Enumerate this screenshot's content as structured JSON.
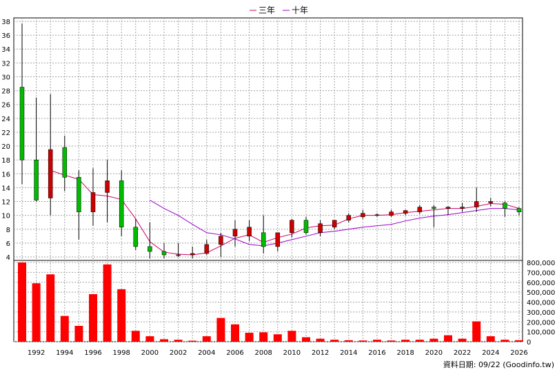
{
  "legend": [
    {
      "label": "三年",
      "color": "#cc0066"
    },
    {
      "label": "十年",
      "color": "#9900cc"
    }
  ],
  "footer": "資料日期: 09/22  (Goodinfo.tw)",
  "colors": {
    "up": "#cc0000",
    "down": "#00bb00",
    "volume": "#ff0000",
    "grid": "#a0a0a0",
    "wick": "#000000"
  },
  "chart_data": [
    {
      "type": "candlestick",
      "title": "",
      "ylim": [
        4,
        38
      ],
      "y_ticks": [
        4,
        6,
        8,
        10,
        12,
        14,
        16,
        18,
        20,
        22,
        24,
        26,
        28,
        30,
        32,
        34,
        36,
        38
      ],
      "x_tick_labels": [
        "1992",
        "1994",
        "1996",
        "1998",
        "2000",
        "2002",
        "2004",
        "2006",
        "2008",
        "2010",
        "2012",
        "2014",
        "2016",
        "2018",
        "2020",
        "2022",
        "2024",
        "2026"
      ],
      "years": [
        1991,
        1992,
        1993,
        1994,
        1995,
        1996,
        1997,
        1998,
        1999,
        2000,
        2001,
        2002,
        2003,
        2004,
        2005,
        2006,
        2007,
        2008,
        2009,
        2010,
        2011,
        2012,
        2013,
        2014,
        2015,
        2016,
        2017,
        2018,
        2019,
        2020,
        2021,
        2022,
        2023,
        2024,
        2025,
        2026
      ],
      "ohlc": [
        [
          28.5,
          37.7,
          14.5,
          18.0
        ],
        [
          18.0,
          27.0,
          12.0,
          12.2
        ],
        [
          12.5,
          27.5,
          10.0,
          19.5
        ],
        [
          19.8,
          21.5,
          13.5,
          15.5
        ],
        [
          15.5,
          16.5,
          6.5,
          10.5
        ],
        [
          10.5,
          16.8,
          8.5,
          13.3
        ],
        [
          13.3,
          18.0,
          9.0,
          15.0
        ],
        [
          15.0,
          16.5,
          7.0,
          8.3
        ],
        [
          8.3,
          9.5,
          5.0,
          5.5
        ],
        [
          5.5,
          9.0,
          3.8,
          4.8
        ],
        [
          4.8,
          6.0,
          3.8,
          4.3
        ],
        [
          4.3,
          6.0,
          4.0,
          4.3
        ],
        [
          4.3,
          5.5,
          3.8,
          4.5
        ],
        [
          4.5,
          6.5,
          4.3,
          5.8
        ],
        [
          5.8,
          7.5,
          4.0,
          7.0
        ],
        [
          7.0,
          9.3,
          5.5,
          8.0
        ],
        [
          7.0,
          9.3,
          6.3,
          8.3
        ],
        [
          7.5,
          10.0,
          4.5,
          5.5
        ],
        [
          5.5,
          7.5,
          4.8,
          7.5
        ],
        [
          7.5,
          9.5,
          6.8,
          9.3
        ],
        [
          9.3,
          9.8,
          7.2,
          7.5
        ],
        [
          7.5,
          9.3,
          7.0,
          8.8
        ],
        [
          8.3,
          9.3,
          8.0,
          9.3
        ],
        [
          9.3,
          10.3,
          9.0,
          10.0
        ],
        [
          9.8,
          10.8,
          9.5,
          10.3
        ],
        [
          10.0,
          10.3,
          9.8,
          10.1
        ],
        [
          10.0,
          10.8,
          9.8,
          10.5
        ],
        [
          10.3,
          10.8,
          10.0,
          10.7
        ],
        [
          10.5,
          11.5,
          10.2,
          11.2
        ],
        [
          11.2,
          11.5,
          8.3,
          11.0
        ],
        [
          11.0,
          11.3,
          10.0,
          11.2
        ],
        [
          11.0,
          11.8,
          10.5,
          11.2
        ],
        [
          11.2,
          14.0,
          10.5,
          12.0
        ],
        [
          11.8,
          12.5,
          11.3,
          12.0
        ],
        [
          11.8,
          12.0,
          9.8,
          11.0
        ],
        [
          11.0,
          11.2,
          10.0,
          10.5
        ]
      ],
      "series": [
        {
          "name": "三年",
          "x": [
            1993,
            1994,
            1995,
            1996,
            1997,
            1998,
            1999,
            2000,
            2001,
            2002,
            2003,
            2004,
            2005,
            2006,
            2007,
            2008,
            2009,
            2010,
            2011,
            2012,
            2013,
            2014,
            2015,
            2016,
            2017,
            2018,
            2019,
            2020,
            2021,
            2022,
            2023,
            2024,
            2025,
            2026
          ],
          "values": [
            16.5,
            15.8,
            15.2,
            13.0,
            12.8,
            12.3,
            9.5,
            6.2,
            4.7,
            4.4,
            4.3,
            4.6,
            5.6,
            6.7,
            7.2,
            6.1,
            6.8,
            7.3,
            8.2,
            8.5,
            8.6,
            9.5,
            10.0,
            10.0,
            10.1,
            10.4,
            10.6,
            10.8,
            11.0,
            11.0,
            11.3,
            11.7,
            11.6,
            11.0
          ]
        },
        {
          "name": "十年",
          "x": [
            2000,
            2001,
            2002,
            2003,
            2004,
            2005,
            2006,
            2007,
            2008,
            2009,
            2010,
            2011,
            2012,
            2013,
            2014,
            2015,
            2016,
            2017,
            2018,
            2019,
            2020,
            2021,
            2022,
            2023,
            2024,
            2025,
            2026
          ],
          "values": [
            12.2,
            11.0,
            10.0,
            8.7,
            7.5,
            7.2,
            6.6,
            5.8,
            5.6,
            6.0,
            6.5,
            7.0,
            7.5,
            7.7,
            8.0,
            8.3,
            8.5,
            8.7,
            9.2,
            9.6,
            9.9,
            10.1,
            10.4,
            10.7,
            11.0,
            11.0,
            10.8
          ]
        }
      ]
    },
    {
      "type": "bar",
      "title": "",
      "ylim": [
        0,
        800000
      ],
      "y_ticks": [
        0,
        100000,
        200000,
        300000,
        400000,
        500000,
        600000,
        700000,
        800000
      ],
      "y_tick_labels": [
        "0",
        "100,000",
        "200,000",
        "300,000",
        "400,000",
        "500,000",
        "600,000",
        "700,000",
        "800,000"
      ],
      "categories": [
        1991,
        1992,
        1993,
        1994,
        1995,
        1996,
        1997,
        1998,
        1999,
        2000,
        2001,
        2002,
        2003,
        2004,
        2005,
        2006,
        2007,
        2008,
        2009,
        2010,
        2011,
        2012,
        2013,
        2014,
        2015,
        2016,
        2017,
        2018,
        2019,
        2020,
        2021,
        2022,
        2023,
        2024,
        2025,
        2026
      ],
      "values": [
        800000,
        590000,
        680000,
        260000,
        160000,
        480000,
        780000,
        530000,
        110000,
        55000,
        25000,
        20000,
        10000,
        55000,
        240000,
        175000,
        90000,
        95000,
        75000,
        110000,
        45000,
        30000,
        20000,
        15000,
        12000,
        20000,
        12000,
        20000,
        20000,
        30000,
        65000,
        30000,
        205000,
        55000,
        20000,
        15000
      ]
    }
  ]
}
